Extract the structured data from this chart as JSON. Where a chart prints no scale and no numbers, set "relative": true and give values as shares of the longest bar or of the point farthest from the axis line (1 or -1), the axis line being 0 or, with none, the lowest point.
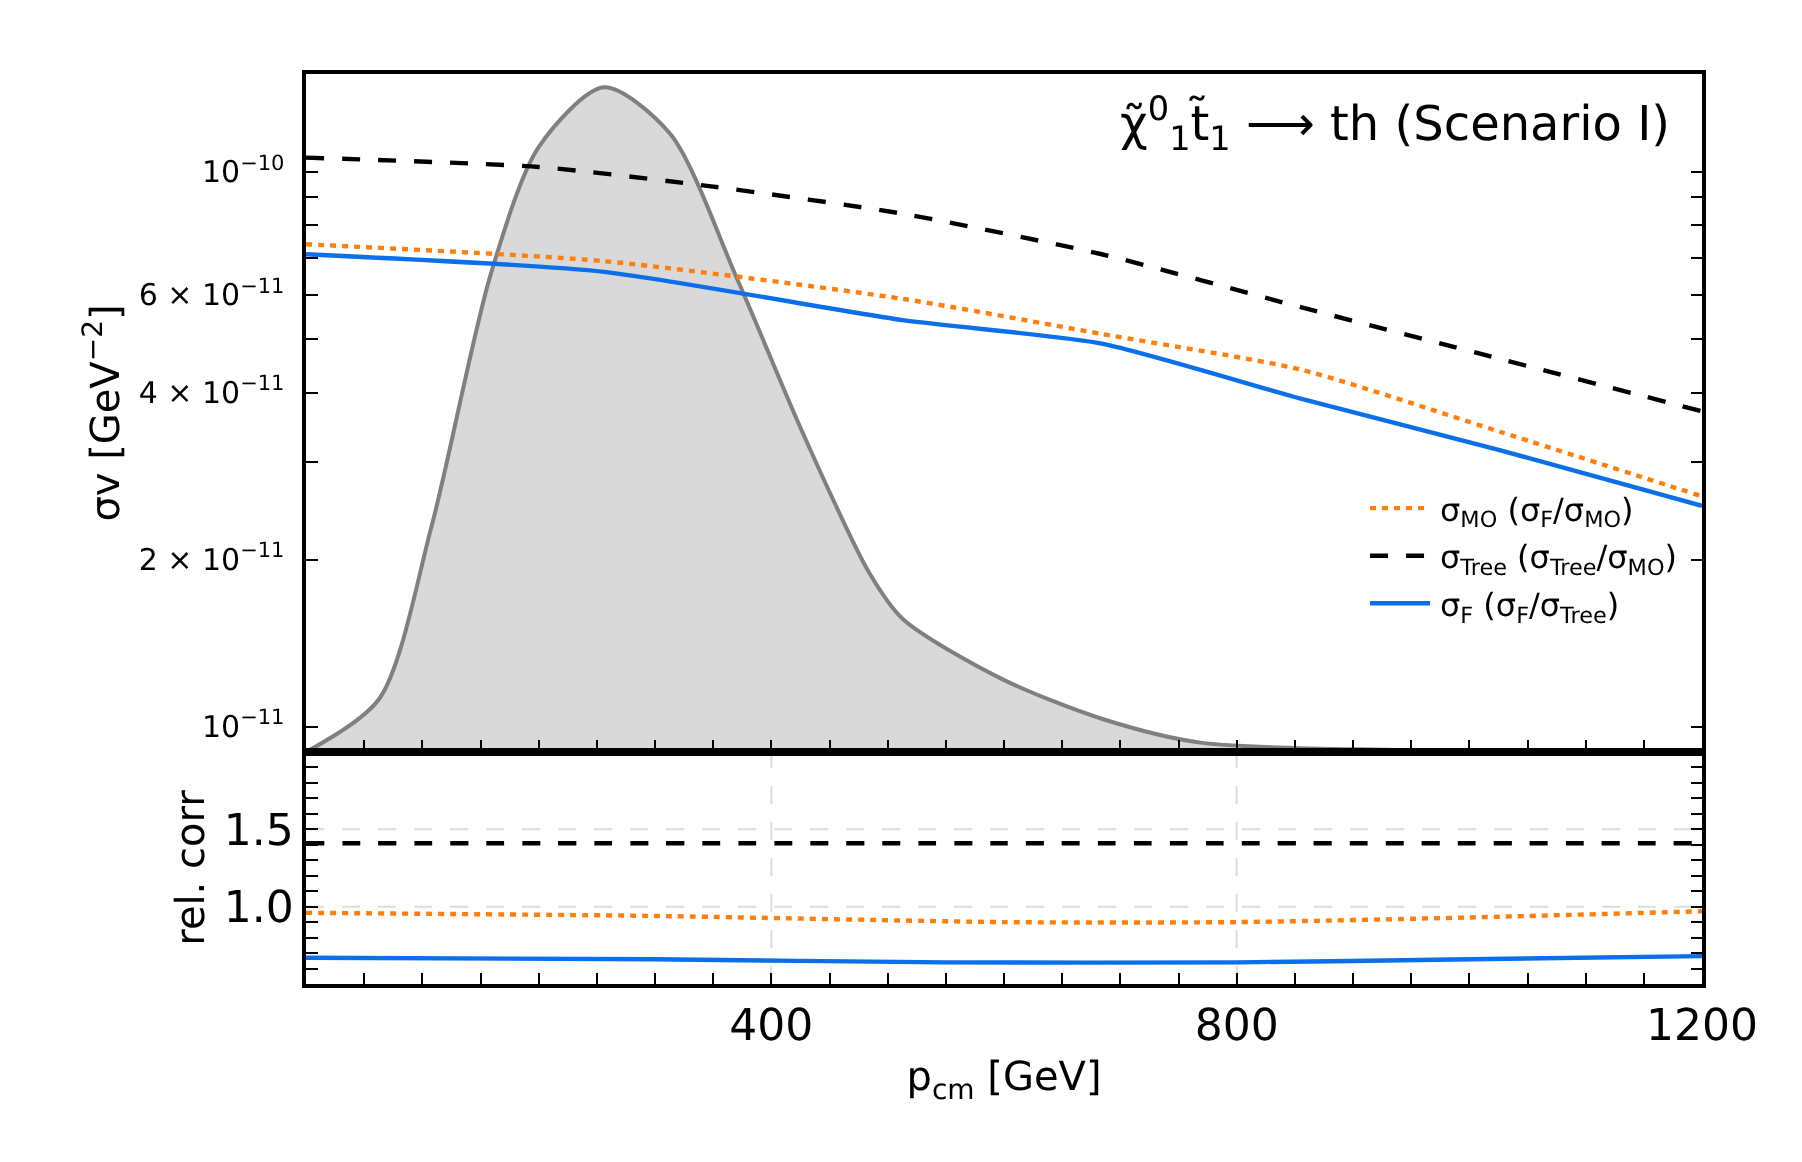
{
  "chart_data": [
    {
      "type": "line",
      "title": "χ̃$^{0}$$_{1}$t̃$_{1}$ ⟶ th (Scenario I)",
      "ylabel": "σv [GeV$^{−2}$]",
      "log": "y",
      "legend": "right",
      "tick_labels": "y",
      "xlim": [
        0,
        1200
      ],
      "xticks": [
        {
          "value": 50,
          "label": null
        },
        {
          "value": 100,
          "label": null
        },
        {
          "value": 150,
          "label": null
        },
        {
          "value": 200,
          "label": null
        },
        {
          "value": 250,
          "label": null
        },
        {
          "value": 300,
          "label": null
        },
        {
          "value": 350,
          "label": null
        },
        {
          "value": 400,
          "label": null
        },
        {
          "value": 450,
          "label": null
        },
        {
          "value": 500,
          "label": null
        },
        {
          "value": 550,
          "label": null
        },
        {
          "value": 600,
          "label": null
        },
        {
          "value": 650,
          "label": null
        },
        {
          "value": 700,
          "label": null
        },
        {
          "value": 750,
          "label": null
        },
        {
          "value": 800,
          "label": null
        },
        {
          "value": 850,
          "label": null
        },
        {
          "value": 900,
          "label": null
        },
        {
          "value": 950,
          "label": null
        },
        {
          "value": 1000,
          "label": null
        },
        {
          "value": 1050,
          "label": null
        },
        {
          "value": 1100,
          "label": null
        },
        {
          "value": 1150,
          "label": null
        }
      ],
      "ylim": [
        9e-12,
        1.5e-10
      ],
      "yticks": [
        {
          "value": 1e-11,
          "label": "10$^{−11}$"
        },
        {
          "value": 2e-11,
          "label": "2 × 10$^{−11}$"
        },
        {
          "value": 3e-11,
          "label": null
        },
        {
          "value": 4e-11,
          "label": "4 × 10$^{−11}$"
        },
        {
          "value": 5e-11,
          "label": null
        },
        {
          "value": 6e-11,
          "label": "6 × 10$^{−11}$"
        },
        {
          "value": 7e-11,
          "label": null
        },
        {
          "value": 8e-11,
          "label": null
        },
        {
          "value": 9e-11,
          "label": null
        },
        {
          "value": 1e-10,
          "label": "10$^{−10}$"
        }
      ],
      "series": [
        {
          "name": "σ$_{MO}$ (σ$_{F}$/σ$_{MO}$)",
          "color": "#ff7f0e",
          "line_style": "dotted",
          "x": [
            0,
            256,
            513,
            684,
            855,
            1026,
            1200
          ],
          "values": [
            7.4e-11,
            6.9e-11,
            5.9e-11,
            5.1e-11,
            4.4e-11,
            3.4e-11,
            2.6e-11
          ]
        },
        {
          "name": "σ$_{Tree}$ (σ$_{Tree}$/σ$_{MO}$)",
          "color": "#000000",
          "line_style": "dashed",
          "x": [
            0,
            200,
            350,
            513,
            684,
            855,
            1026,
            1200
          ],
          "values": [
            1.06e-10,
            1.02e-10,
            9.4e-11,
            8.4e-11,
            7.1e-11,
            5.7e-11,
            4.6e-11,
            3.7e-11
          ]
        },
        {
          "name": "σ$_{F}$ (σ$_{F}$/σ$_{Tree}$)",
          "color": "#0a6fe8",
          "line_style": "solid",
          "x": [
            0,
            256,
            513,
            684,
            855,
            1026,
            1200
          ],
          "values": [
            7.1e-11,
            6.6e-11,
            5.4e-11,
            4.9e-11,
            3.9e-11,
            3.15e-11,
            2.5e-11
          ]
        }
      ]
    },
    {
      "type": "area",
      "relative": true,
      "tick_labels": false,
      "xlim": [
        0,
        1200
      ],
      "series": [
        {
          "color": "#d9d9d9",
          "x": [
            0,
            63,
            108,
            159,
            200,
            256,
            313,
            371,
            427,
            484,
            513,
            598,
            684,
            769,
            940,
            1200
          ],
          "values": [
            0,
            0.08,
            0.34,
            0.72,
            0.91,
            1.0,
            0.93,
            0.71,
            0.48,
            0.27,
            0.2,
            0.11,
            0.05,
            0.014,
            0.003,
            0
          ]
        }
      ]
    },
    {
      "type": "line",
      "xlabel": "p$_{cm}$ [GeV]",
      "ylabel": "rel. corr",
      "grid": true,
      "xlim": [
        0,
        1200
      ],
      "xticks": [
        {
          "value": 50,
          "label": null
        },
        {
          "value": 100,
          "label": null
        },
        {
          "value": 150,
          "label": null
        },
        {
          "value": 200,
          "label": null
        },
        {
          "value": 250,
          "label": null
        },
        {
          "value": 300,
          "label": null
        },
        {
          "value": 350,
          "label": null
        },
        400,
        {
          "value": 450,
          "label": null
        },
        {
          "value": 500,
          "label": null
        },
        {
          "value": 550,
          "label": null
        },
        {
          "value": 600,
          "label": null
        },
        {
          "value": 650,
          "label": null
        },
        {
          "value": 700,
          "label": null
        },
        {
          "value": 750,
          "label": null
        },
        800,
        {
          "value": 850,
          "label": null
        },
        {
          "value": 900,
          "label": null
        },
        {
          "value": 950,
          "label": null
        },
        {
          "value": 1000,
          "label": null
        },
        {
          "value": 1050,
          "label": null
        },
        {
          "value": 1100,
          "label": null
        },
        {
          "value": 1150,
          "label": null
        },
        1200
      ],
      "ylim": [
        0.5,
        2.0
      ],
      "yticks": [
        {
          "value": 0.6,
          "label": null
        },
        {
          "value": 0.7,
          "label": null
        },
        {
          "value": 0.8,
          "label": null
        },
        {
          "value": 0.9,
          "label": null
        },
        {
          "value": 1.0,
          "label": "1.0"
        },
        {
          "value": 1.1,
          "label": null
        },
        {
          "value": 1.2,
          "label": null
        },
        {
          "value": 1.3,
          "label": null
        },
        {
          "value": 1.4,
          "label": null
        },
        {
          "value": 1.5,
          "label": "1.5"
        },
        {
          "value": 1.6,
          "label": null
        },
        {
          "value": 1.7,
          "label": null
        },
        {
          "value": 1.8,
          "label": null
        },
        {
          "value": 1.9,
          "label": null
        }
      ],
      "series": [
        {
          "color": "#ff7f0e",
          "line_style": "dotted",
          "x": [
            0,
            300,
            600,
            800,
            1000,
            1200
          ],
          "values": [
            0.96,
            0.94,
            0.9,
            0.9,
            0.93,
            0.97
          ]
        },
        {
          "color": "#000000",
          "line_style": "dashed",
          "x": [
            0,
            600,
            1200
          ],
          "values": [
            1.41,
            1.41,
            1.41
          ]
        },
        {
          "color": "#0a6fe8",
          "line_style": "solid",
          "x": [
            0,
            300,
            550,
            800,
            1000,
            1200
          ],
          "values": [
            0.67,
            0.66,
            0.64,
            0.64,
            0.66,
            0.68
          ]
        }
      ]
    }
  ]
}
